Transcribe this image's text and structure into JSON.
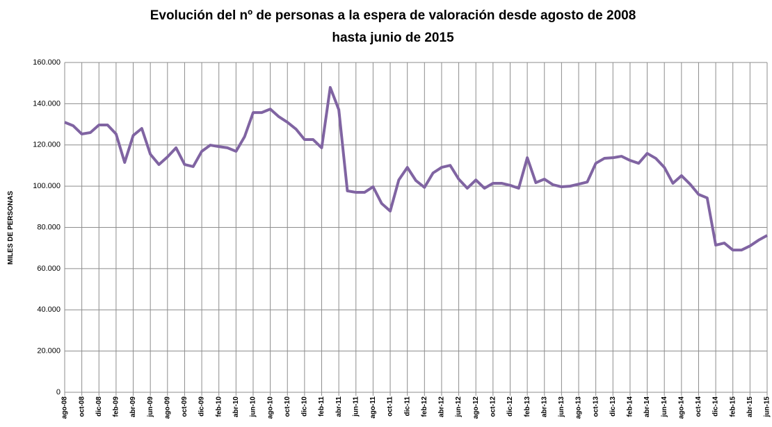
{
  "chart_data": {
    "type": "line",
    "title": [
      "Evolución del nº de personas a la espera de valoración desde agosto de 2008",
      "hasta junio de 2015"
    ],
    "y_label": "MILES DE PERSONAS",
    "categories": [
      "ago-08",
      null,
      "oct-08",
      null,
      "dic-08",
      null,
      "feb-09",
      null,
      "abr-09",
      null,
      "jun-09",
      null,
      "ago-09",
      null,
      "oct-09",
      null,
      "dic-09",
      null,
      "feb-10",
      null,
      "abr-10",
      null,
      "jun-10",
      null,
      "ago-10",
      null,
      "oct-10",
      null,
      "dic-10",
      null,
      "feb-11",
      null,
      "abr-11",
      null,
      "jun-11",
      null,
      "ago-11",
      null,
      "oct-11",
      null,
      "dic-11",
      null,
      "feb-12",
      null,
      "abr-12",
      null,
      "jun-12",
      null,
      "ago-12",
      null,
      "oct-12",
      null,
      "dic-12",
      null,
      "feb-13",
      null,
      "abr-13",
      null,
      "jun-13",
      null,
      "ago-13",
      null,
      "oct-13",
      null,
      "dic-13",
      null,
      "feb-14",
      null,
      "abr-14",
      null,
      "jun-14",
      null,
      "ago-14",
      null,
      "oct-14",
      null,
      "dic-14",
      null,
      "feb-15",
      null,
      "abr-15",
      null,
      "jun-15"
    ],
    "series": [
      {
        "color": "#8064a2",
        "values": [
          131000,
          129300,
          125300,
          126000,
          129700,
          129700,
          125300,
          111500,
          124600,
          128000,
          115500,
          110500,
          114200,
          118600,
          110500,
          109500,
          116900,
          119900,
          119200,
          118600,
          116900,
          124000,
          135700,
          135700,
          137400,
          133700,
          131000,
          127700,
          122600,
          122600,
          118600,
          147900,
          137100,
          97700,
          97000,
          97000,
          99700,
          91600,
          87900,
          103000,
          109100,
          102700,
          99400,
          106400,
          109100,
          110100,
          103400,
          99000,
          103000,
          99000,
          101400,
          101400,
          100400,
          99000,
          113800,
          101700,
          103400,
          100700,
          99700,
          100000,
          101000,
          102000,
          111100,
          113500,
          113800,
          114500,
          112500,
          111100,
          115900,
          113500,
          109100,
          101400,
          105100,
          101000,
          96000,
          94300,
          71400,
          72400,
          69000,
          69000,
          71000,
          73800,
          76100
        ]
      }
    ],
    "ylim": [
      0,
      160000
    ],
    "yticks": [
      0,
      {
        "value": 20000,
        "label": "20.000"
      },
      {
        "value": 40000,
        "label": "40.000"
      },
      {
        "value": 60000,
        "label": "60.000"
      },
      {
        "value": 80000,
        "label": "80.000"
      },
      {
        "value": 100000,
        "label": "100.000"
      },
      {
        "value": 120000,
        "label": "120.000"
      },
      {
        "value": 140000,
        "label": "140.000"
      },
      {
        "value": 160000,
        "label": "160.000"
      }
    ],
    "grid": true
  }
}
